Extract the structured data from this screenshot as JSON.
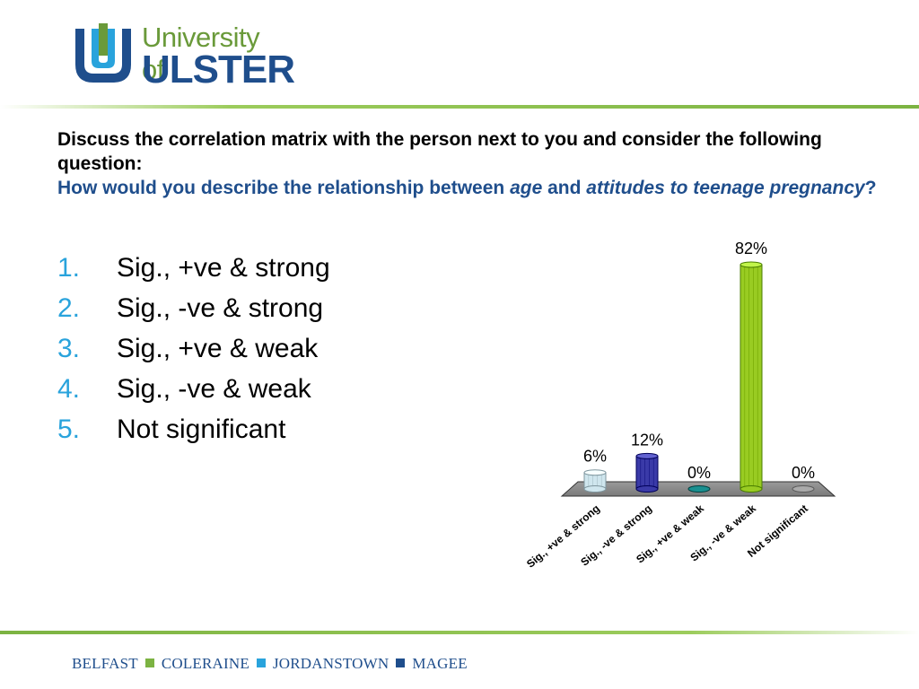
{
  "header": {
    "logo_line1": "University of",
    "logo_line2": "ULSTER"
  },
  "question": {
    "line1": "Discuss the correlation matrix with the person next to you and consider the following question:",
    "line2_a": "How would you describe the relationship between ",
    "line2_b": "age",
    "line2_c": " and ",
    "line2_d": "attitudes to teenage pregnancy",
    "line2_e": "?"
  },
  "options": [
    {
      "num": "1.",
      "label": "Sig., +ve & strong"
    },
    {
      "num": "2.",
      "label": "Sig., -ve & strong"
    },
    {
      "num": "3.",
      "label": "Sig., +ve & weak"
    },
    {
      "num": "4.",
      "label": "Sig., -ve & weak"
    },
    {
      "num": "5.",
      "label": "Not significant"
    }
  ],
  "chart_data": {
    "type": "bar",
    "categories": [
      "Sig., +ve & strong",
      "Sig., -ve & strong",
      "Sig., +ve & weak",
      "Sig., -ve & weak",
      "Not significant"
    ],
    "values": [
      6,
      12,
      0,
      82,
      0
    ],
    "data_labels": [
      "6%",
      "12%",
      "0%",
      "82%",
      "0%"
    ],
    "colors": [
      "#cfe6ee",
      "#3a3aa8",
      "#1a9090",
      "#99cc22",
      "#aaaaaa"
    ],
    "ylim": [
      0,
      82
    ],
    "grid": false,
    "legend": "none"
  },
  "footer": {
    "campuses": [
      "BELFAST",
      "COLERAINE",
      "JORDANSTOWN",
      "MAGEE"
    ],
    "sep_colors": [
      "#7cb342",
      "#29a3dc",
      "#1f4e8c"
    ]
  }
}
